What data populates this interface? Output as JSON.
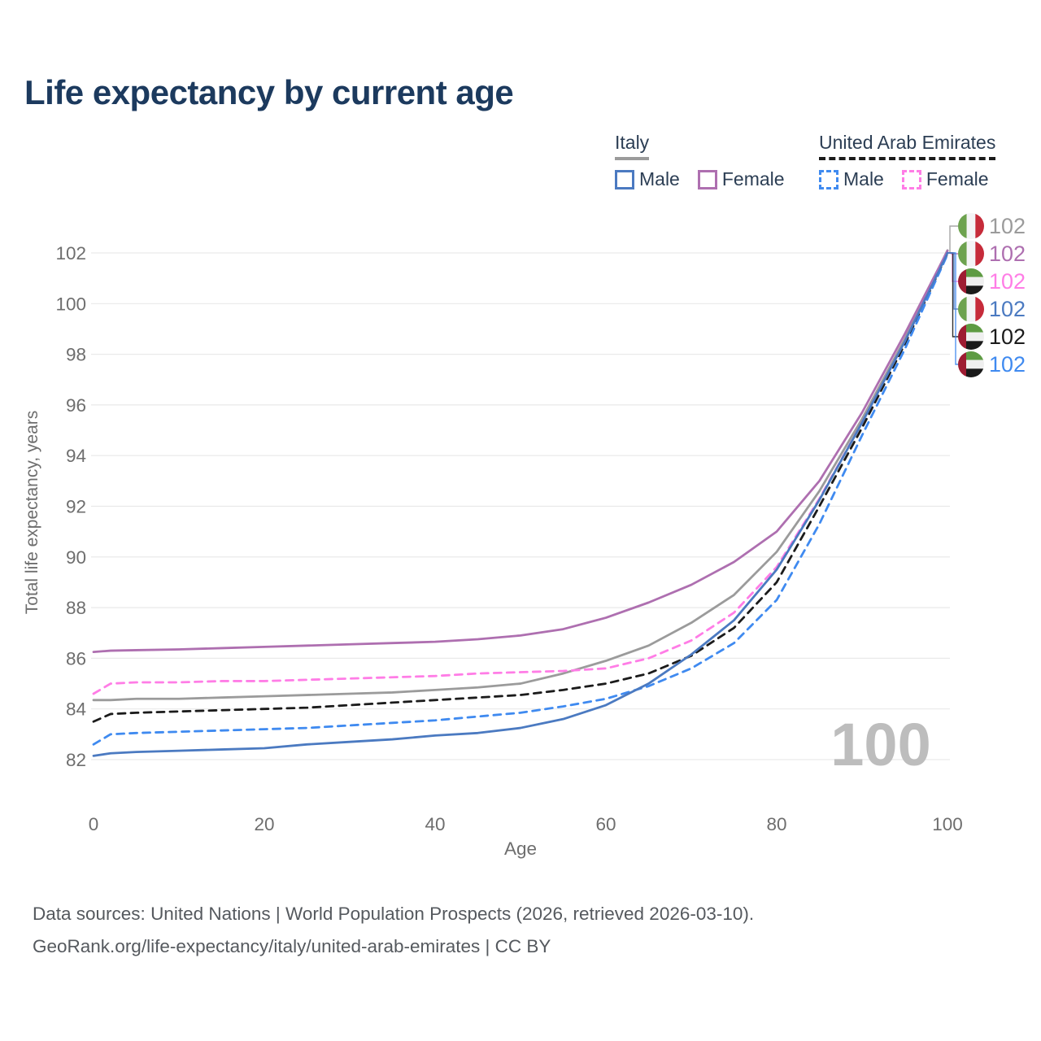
{
  "header": {
    "title": "Life expectancy by current age"
  },
  "legend": {
    "groups": [
      {
        "country": "Italy",
        "underline_color": "#9b9b9b",
        "underline_style": "solid",
        "items": [
          {
            "label": "Male",
            "color": "#4b7ac1",
            "dash": "solid"
          },
          {
            "label": "Female",
            "color": "#ae6fb0",
            "dash": "solid"
          }
        ]
      },
      {
        "country": "United Arab Emirates",
        "underline_color": "#1b1b1b",
        "underline_style": "dashed",
        "items": [
          {
            "label": "Male",
            "color": "#3f8af0",
            "dash": "dashed"
          },
          {
            "label": "Female",
            "color": "#ff7de6",
            "dash": "dashed"
          }
        ]
      }
    ]
  },
  "chart_data": {
    "type": "line",
    "title": "Life expectancy by current age",
    "xlabel": "Age",
    "ylabel": "Total life expectancy, years",
    "xlim": [
      0,
      100
    ],
    "ylim": [
      82,
      102
    ],
    "xticks": [
      0,
      20,
      40,
      60,
      80,
      100
    ],
    "yticks": [
      82,
      84,
      86,
      88,
      90,
      92,
      94,
      96,
      98,
      100,
      102
    ],
    "grid": "horizontal",
    "grid_color": "#e9e9e9",
    "axis_text_color": "#6e6e6e",
    "watermark": "100",
    "watermark_color": "#bdbdbd",
    "x": [
      0,
      2,
      5,
      10,
      15,
      20,
      25,
      30,
      35,
      40,
      45,
      50,
      55,
      60,
      65,
      70,
      75,
      80,
      85,
      90,
      95,
      100
    ],
    "series": [
      {
        "name": "Italy average",
        "country": "it",
        "sex": "both",
        "color": "#9b9b9b",
        "dash": "solid",
        "end_label": "102",
        "end_row": 0,
        "values": [
          84.35,
          84.35,
          84.4,
          84.4,
          84.45,
          84.5,
          84.55,
          84.6,
          84.65,
          84.75,
          84.85,
          85.0,
          85.4,
          85.9,
          86.5,
          87.4,
          88.5,
          90.2,
          92.6,
          95.45,
          98.6,
          102.1
        ]
      },
      {
        "name": "Italy Female",
        "country": "it",
        "sex": "female",
        "color": "#ae6fb0",
        "dash": "solid",
        "end_label": "102",
        "end_row": 1,
        "values": [
          86.25,
          86.3,
          86.32,
          86.35,
          86.4,
          86.45,
          86.5,
          86.55,
          86.6,
          86.65,
          86.75,
          86.9,
          87.15,
          87.6,
          88.2,
          88.9,
          89.8,
          91.0,
          93.0,
          95.7,
          98.8,
          102.08
        ]
      },
      {
        "name": "United Arab Emirates Female",
        "country": "ae",
        "sex": "female",
        "color": "#ff7de6",
        "dash": "dashed",
        "end_label": "102",
        "end_row": 2,
        "values": [
          84.6,
          85.0,
          85.05,
          85.05,
          85.1,
          85.1,
          85.15,
          85.2,
          85.25,
          85.3,
          85.4,
          85.45,
          85.5,
          85.6,
          86.0,
          86.7,
          87.8,
          89.6,
          92.3,
          95.3,
          98.5,
          102.02
        ]
      },
      {
        "name": "United Arab Emirates average",
        "country": "ae",
        "sex": "both",
        "color": "#1b1b1b",
        "dash": "dashed",
        "end_label": "102",
        "end_row": 4,
        "values": [
          83.5,
          83.8,
          83.85,
          83.9,
          83.95,
          84.0,
          84.05,
          84.15,
          84.25,
          84.35,
          84.45,
          84.55,
          84.75,
          85.0,
          85.4,
          86.1,
          87.2,
          89.0,
          92.0,
          95.1,
          98.4,
          101.98
        ]
      },
      {
        "name": "United Arab Emirates Male",
        "country": "ae",
        "sex": "male",
        "color": "#3f8af0",
        "dash": "dashed",
        "end_label": "102",
        "end_row": 5,
        "values": [
          82.6,
          83.0,
          83.05,
          83.1,
          83.15,
          83.2,
          83.25,
          83.35,
          83.45,
          83.55,
          83.7,
          83.85,
          84.1,
          84.4,
          84.9,
          85.6,
          86.6,
          88.3,
          91.3,
          94.8,
          98.2,
          101.94
        ]
      },
      {
        "name": "Italy Male",
        "country": "it",
        "sex": "male",
        "color": "#4b7ac1",
        "dash": "solid",
        "end_label": "102",
        "end_row": 3,
        "values": [
          82.15,
          82.25,
          82.3,
          82.35,
          82.4,
          82.45,
          82.6,
          82.7,
          82.8,
          82.95,
          83.05,
          83.25,
          83.6,
          84.15,
          85.0,
          86.15,
          87.5,
          89.5,
          92.25,
          95.3,
          98.5,
          102.0
        ]
      }
    ]
  },
  "footer": {
    "line1": "Data sources: United Nations | World Population Prospects (2026, retrieved 2026-03-10).",
    "line2": "GeoRank.org/life-expectancy/italy/united-arab-emirates | CC BY"
  }
}
